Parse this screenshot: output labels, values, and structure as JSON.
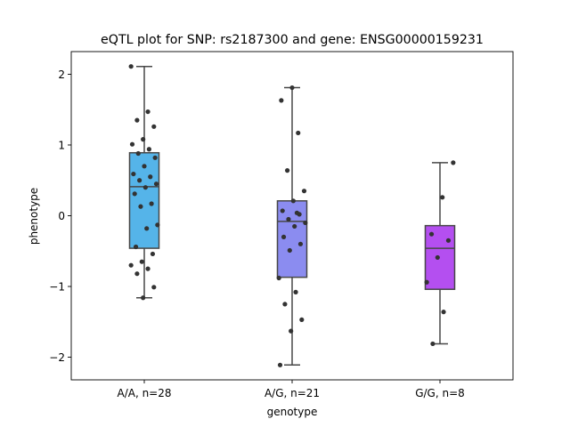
{
  "chart_data": {
    "type": "box",
    "title": "eQTL plot for SNP: rs2187300 and gene: ENSG00000159231",
    "xlabel": "genotype",
    "ylabel": "phenotype",
    "ylim": [
      -2.32,
      2.32
    ],
    "yticks": [
      2,
      1,
      0,
      -1,
      -2
    ],
    "ytick_labels": [
      "2",
      "1",
      "0",
      "−1",
      "−2"
    ],
    "grid": false,
    "categories": [
      "A/A, n=28",
      "A/G, n=21",
      "G/G, n=8"
    ],
    "boxes": [
      {
        "category": "A/A, n=28",
        "color": "#55b4e9",
        "whisker_low": -1.16,
        "q1": -0.46,
        "median": 0.41,
        "q3": 0.89,
        "whisker_high": 2.11
      },
      {
        "category": "A/G, n=21",
        "color": "#8b8cf0",
        "whisker_low": -2.11,
        "q1": -0.87,
        "median": -0.08,
        "q3": 0.21,
        "whisker_high": 1.81
      },
      {
        "category": "G/G, n=8",
        "color": "#b44ff0",
        "whisker_low": -1.81,
        "q1": -1.04,
        "median": -0.46,
        "q3": -0.14,
        "whisker_high": 0.75
      }
    ],
    "points": [
      [
        2.11,
        1.47,
        1.35,
        1.26,
        1.08,
        1.01,
        0.94,
        0.88,
        0.82,
        0.7,
        0.59,
        0.55,
        0.5,
        0.45,
        0.4,
        0.31,
        0.17,
        0.13,
        -0.13,
        -0.18,
        -0.44,
        -0.54,
        -0.65,
        -0.7,
        -0.75,
        -0.82,
        -1.01,
        -1.16
      ],
      [
        1.81,
        1.63,
        1.17,
        0.64,
        0.35,
        0.21,
        0.07,
        0.02,
        -0.05,
        -0.1,
        -0.15,
        -0.3,
        -0.4,
        -0.49,
        -0.88,
        -1.08,
        -1.25,
        -1.47,
        -1.63,
        -2.11,
        0.04
      ],
      [
        0.75,
        0.26,
        -0.26,
        -0.35,
        -0.59,
        -0.94,
        -1.36,
        -1.81
      ]
    ]
  }
}
